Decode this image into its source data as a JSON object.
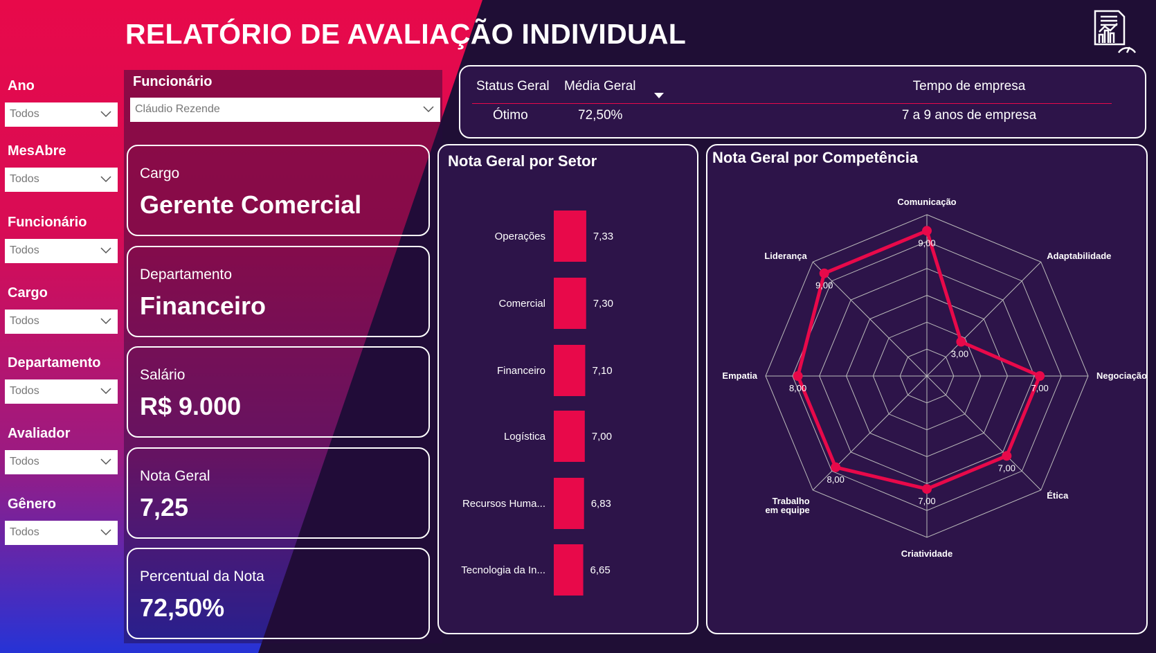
{
  "title": "RELATÓRIO DE AVALIAÇÃO INDIVIDUAL",
  "filters": [
    {
      "label": "Ano",
      "value": "Todos"
    },
    {
      "label": "MesAbre",
      "value": "Todos"
    },
    {
      "label": "Funcionário",
      "value": "Todos"
    },
    {
      "label": "Cargo",
      "value": "Todos"
    },
    {
      "label": "Departamento",
      "value": "Todos"
    },
    {
      "label": "Avaliador",
      "value": "Todos"
    },
    {
      "label": "Gênero",
      "value": "Todos"
    }
  ],
  "employee_filter": {
    "label": "Funcionário",
    "value": "Cláudio Rezende"
  },
  "cards": [
    {
      "label": "Cargo",
      "value": "Gerente Comercial"
    },
    {
      "label": "Departamento",
      "value": "Financeiro"
    },
    {
      "label": "Salário",
      "value": "R$ 9.000"
    },
    {
      "label": "Nota Geral",
      "value": "7,25"
    },
    {
      "label": "Percentual da Nota",
      "value": "72,50%"
    }
  ],
  "summary": {
    "headers": [
      "Status Geral",
      "Média Geral",
      "Tempo de empresa"
    ],
    "row": [
      "Ótimo",
      "72,50%",
      "7 a 9 anos de empresa"
    ]
  },
  "colors": {
    "accent": "#e8094a",
    "dark": "#1f0e35",
    "panel": "#2d1449"
  },
  "chart_data": [
    {
      "type": "bar",
      "title": "Nota Geral por Setor",
      "categories": [
        "Operações",
        "Comercial",
        "Financeiro",
        "Logística",
        "Recursos Huma...",
        "Tecnologia da In..."
      ],
      "values": [
        7.33,
        7.3,
        7.1,
        7.0,
        6.83,
        6.65
      ],
      "labels": [
        "7,33",
        "7,30",
        "7,10",
        "7,00",
        "6,83",
        "6,65"
      ],
      "orientation": "horizontal",
      "xlim": [
        0,
        10
      ]
    },
    {
      "type": "radar",
      "title": "Nota Geral por Competência",
      "categories": [
        "Comunicação",
        "Adaptabilidade",
        "Negociação",
        "Ética",
        "Criatividade",
        "Trabalho em equipe",
        "Empatia",
        "Liderança"
      ],
      "values": [
        9,
        3,
        7,
        7,
        7,
        8,
        8,
        9
      ],
      "labels": [
        "9,00",
        "3,00",
        "7,00",
        "7,00",
        "7,00",
        "8,00",
        "8,00",
        "9,00"
      ],
      "rlim": [
        0,
        10
      ]
    }
  ]
}
